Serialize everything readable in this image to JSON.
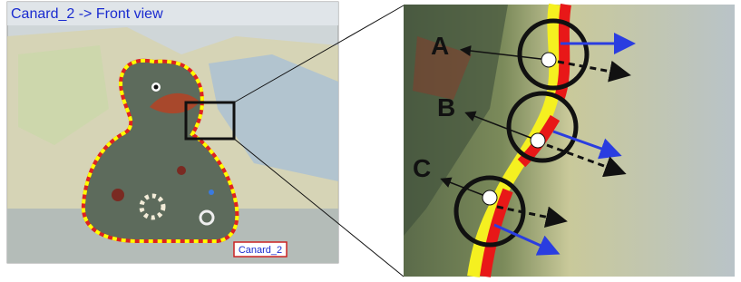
{
  "left_panel": {
    "title": "Canard_2 -> Front view",
    "object_label": "Canard_2"
  },
  "right_panel": {
    "points": [
      {
        "label": "A"
      },
      {
        "label": "B"
      },
      {
        "label": "C"
      }
    ]
  }
}
